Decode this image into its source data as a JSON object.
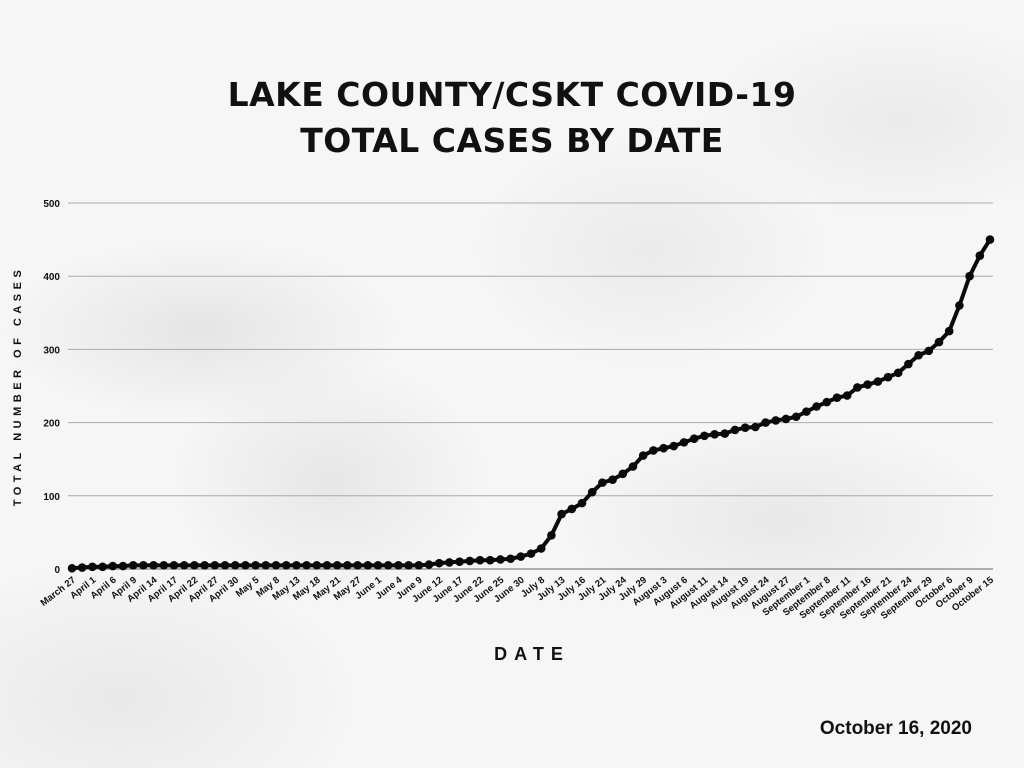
{
  "chart_data": {
    "type": "line",
    "title_line1": "LAKE COUNTY/CSKT COVID-19",
    "title_line2": "TOTAL CASES BY DATE",
    "xlabel": "DATE",
    "ylabel": "TOTAL NUMBER OF CASES",
    "ylim": [
      0,
      500
    ],
    "yticks": [
      0,
      100,
      200,
      300,
      400,
      500
    ],
    "grid": true,
    "categories": [
      "March 27",
      "April 1",
      "April 6",
      "April 9",
      "April 14",
      "April 17",
      "April 22",
      "April 27",
      "April 30",
      "May 5",
      "May 8",
      "May 13",
      "May 18",
      "May 21",
      "May 27",
      "June 1",
      "June 4",
      "June 9",
      "June 12",
      "June 17",
      "June 22",
      "June 25",
      "June 30",
      "July 8",
      "July 13",
      "July 16",
      "July 21",
      "July 24",
      "July 29",
      "August 3",
      "August 6",
      "August 11",
      "August 14",
      "August 19",
      "August 24",
      "August 27",
      "September 1",
      "September 8",
      "September 11",
      "September 16",
      "September 21",
      "September 24",
      "September 29",
      "October 6",
      "October 9",
      "October 15"
    ],
    "values_at_labels": [
      1,
      3,
      4,
      5,
      5,
      5,
      5,
      5,
      5,
      5,
      5,
      5,
      5,
      5,
      5,
      5,
      5,
      5,
      8,
      10,
      12,
      13,
      17,
      28,
      75,
      90,
      118,
      130,
      155,
      165,
      173,
      182,
      185,
      193,
      200,
      205,
      215,
      228,
      237,
      252,
      262,
      280,
      298,
      325,
      400,
      450
    ],
    "values_between_labels": [
      2,
      3,
      4,
      5,
      5,
      5,
      5,
      5,
      5,
      5,
      5,
      5,
      5,
      5,
      5,
      5,
      5,
      6,
      9,
      11,
      12,
      14,
      21,
      46,
      82,
      105,
      122,
      140,
      162,
      168,
      178,
      184,
      190,
      194,
      203,
      208,
      222,
      234,
      248,
      256,
      268,
      292,
      310,
      360,
      428
    ],
    "series_color": "#0a0a0a"
  },
  "footer": {
    "date": "October 16, 2020"
  }
}
